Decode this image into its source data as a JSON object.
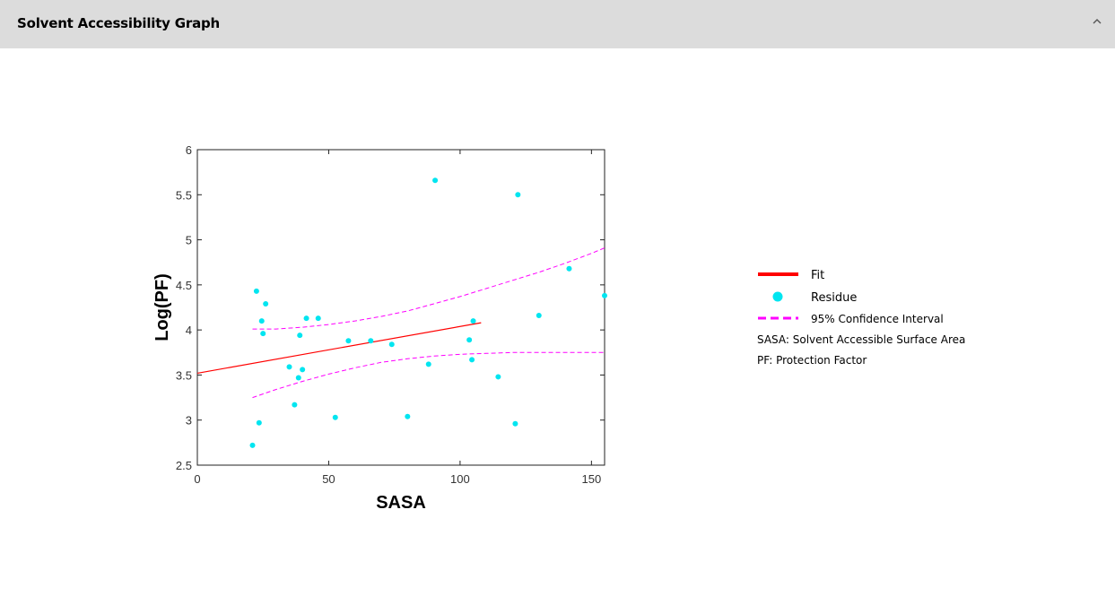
{
  "panel": {
    "title": "Solvent Accessibility Graph",
    "collapse_icon": "chevron-up-icon"
  },
  "chart_data": {
    "type": "scatter",
    "xlabel": "SASA",
    "ylabel": "Log(PF)",
    "xlim": [
      0,
      155
    ],
    "ylim": [
      2.5,
      6
    ],
    "x_ticks": [
      "0",
      "50",
      "100",
      "150"
    ],
    "y_ticks": [
      "2.5",
      "3",
      "3.5",
      "4",
      "4.5",
      "5",
      "5.5",
      "6"
    ],
    "grid": false,
    "legend_position": "right",
    "colors": {
      "fit": "#ff0000",
      "residue": "#00e5f0",
      "confidence": "#ff00ff"
    },
    "fit": {
      "name": "Fit",
      "x": [
        0,
        108
      ],
      "y": [
        3.52,
        4.08
      ]
    },
    "residues": {
      "name": "Residue",
      "points": [
        [
          21,
          2.72
        ],
        [
          22.5,
          4.43
        ],
        [
          23.5,
          2.97
        ],
        [
          24.5,
          4.1
        ],
        [
          25,
          3.96
        ],
        [
          26,
          4.29
        ],
        [
          35,
          3.59
        ],
        [
          37,
          3.17
        ],
        [
          38.5,
          3.47
        ],
        [
          39,
          3.94
        ],
        [
          40,
          3.56
        ],
        [
          41.5,
          4.13
        ],
        [
          46,
          4.13
        ],
        [
          52.5,
          3.03
        ],
        [
          57.5,
          3.88
        ],
        [
          66,
          3.88
        ],
        [
          74,
          3.84
        ],
        [
          80,
          3.04
        ],
        [
          88,
          3.62
        ],
        [
          90.5,
          5.66
        ],
        [
          103.5,
          3.89
        ],
        [
          104.5,
          3.67
        ],
        [
          105,
          4.1
        ],
        [
          114.5,
          3.48
        ],
        [
          121,
          2.96
        ],
        [
          122,
          5.5
        ],
        [
          130,
          4.16
        ],
        [
          141.5,
          4.68
        ],
        [
          155,
          4.38
        ]
      ]
    },
    "confidence_interval": {
      "name": "95% Confidence Interval",
      "upper": {
        "x": [
          21,
          30,
          40,
          50,
          60,
          70,
          80,
          90,
          100,
          110,
          120,
          130,
          140,
          150,
          155
        ],
        "y": [
          4.01,
          4.01,
          4.03,
          4.06,
          4.1,
          4.15,
          4.21,
          4.29,
          4.37,
          4.46,
          4.55,
          4.64,
          4.74,
          4.85,
          4.91
        ]
      },
      "lower": {
        "x": [
          21,
          30,
          40,
          50,
          60,
          70,
          80,
          90,
          100,
          110,
          120,
          130,
          140,
          150,
          155
        ],
        "y": [
          3.25,
          3.34,
          3.43,
          3.51,
          3.58,
          3.64,
          3.68,
          3.71,
          3.73,
          3.74,
          3.75,
          3.75,
          3.75,
          3.75,
          3.75
        ]
      }
    },
    "legend_entries": [
      {
        "key": "fit",
        "label": "Fit",
        "symbol": "line"
      },
      {
        "key": "residue",
        "label": "Residue",
        "symbol": "dot"
      },
      {
        "key": "confidence",
        "label": "95% Confidence Interval",
        "symbol": "dash"
      }
    ],
    "notes": [
      "SASA: Solvent Accessible Surface Area",
      "PF: Protection Factor"
    ]
  }
}
